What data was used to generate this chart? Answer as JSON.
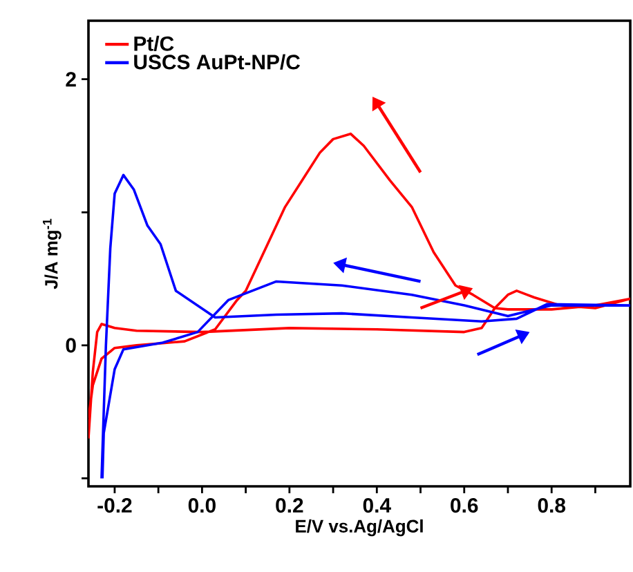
{
  "chart_data": {
    "type": "line",
    "xlabel": "E/V vs.Ag/AgCl",
    "ylabel": "J/A mg$^{-1}$",
    "xlim": [
      -0.26,
      0.98
    ],
    "ylim": [
      -1.06,
      2.44
    ],
    "xticks": [
      -0.2,
      {
        "value": -0.1,
        "label": null
      },
      "0.0",
      {
        "value": 0.1,
        "label": null
      },
      0.2,
      {
        "value": 0.3,
        "label": null
      },
      0.4,
      {
        "value": 0.5,
        "label": null
      },
      0.6,
      {
        "value": 0.7,
        "label": null
      },
      0.8,
      {
        "value": 0.9,
        "label": null
      }
    ],
    "yticks": [
      {
        "value": -1,
        "label": null
      },
      0,
      {
        "value": 1,
        "label": null
      },
      2
    ],
    "grid": false,
    "legend": "top left",
    "marker": "none",
    "line_style": "solid",
    "series": [
      {
        "name": "Pt/C",
        "color": "#ff0000",
        "x": [
          -0.26,
          -0.25,
          -0.24,
          -0.23,
          -0.2,
          -0.15,
          0.0,
          0.2,
          0.4,
          0.6,
          0.64,
          0.67,
          0.7,
          0.72,
          0.76,
          0.82,
          0.9,
          0.98,
          0.9,
          0.8,
          0.7,
          0.67,
          0.62,
          0.58,
          0.53,
          0.48,
          0.43,
          0.37,
          0.34,
          0.3,
          0.27,
          0.19,
          0.1,
          0.08,
          0.03,
          -0.04,
          -0.15,
          -0.2,
          -0.23,
          -0.25,
          -0.26
        ],
        "values": [
          -0.7,
          -0.2,
          0.1,
          0.16,
          0.13,
          0.11,
          0.1,
          0.13,
          0.12,
          0.1,
          0.13,
          0.28,
          0.38,
          0.41,
          0.36,
          0.3,
          0.28,
          0.35,
          0.3,
          0.27,
          0.27,
          0.28,
          0.38,
          0.45,
          0.7,
          1.04,
          1.24,
          1.5,
          1.59,
          1.55,
          1.45,
          1.04,
          0.41,
          0.34,
          0.12,
          0.03,
          0.0,
          -0.02,
          -0.1,
          -0.3,
          -0.55
        ]
      },
      {
        "name": "USCS AuPt-NP/C",
        "color": "#0000ff",
        "x": [
          -0.23,
          -0.22,
          -0.21,
          -0.2,
          -0.18,
          -0.156,
          -0.125,
          -0.095,
          -0.06,
          0.03,
          0.17,
          0.32,
          0.48,
          0.64,
          0.72,
          0.79,
          0.98,
          0.9,
          0.8,
          0.7,
          0.6,
          0.48,
          0.32,
          0.17,
          0.06,
          -0.01,
          -0.09,
          -0.18,
          -0.2,
          -0.225,
          -0.228
        ],
        "values": [
          -1.0,
          0.0,
          0.73,
          1.14,
          1.28,
          1.17,
          0.9,
          0.76,
          0.41,
          0.21,
          0.23,
          0.24,
          0.21,
          0.18,
          0.2,
          0.31,
          0.3,
          0.3,
          0.3,
          0.22,
          0.3,
          0.38,
          0.45,
          0.48,
          0.34,
          0.1,
          0.02,
          -0.03,
          -0.18,
          -0.66,
          -1.0
        ]
      }
    ]
  }
}
